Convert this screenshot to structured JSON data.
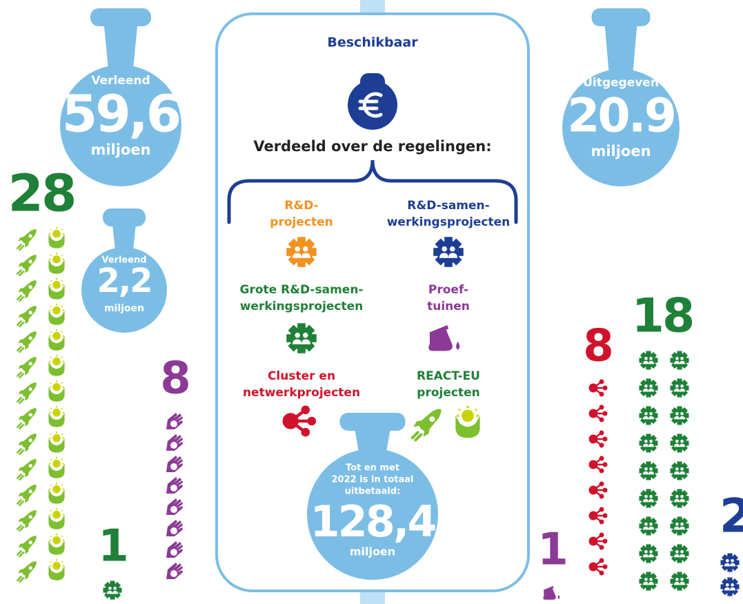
{
  "left_bag": {
    "label": "Verleend",
    "amount": "59,6",
    "unit": "miljoen"
  },
  "small_bag": {
    "label": "Verleend",
    "amount": "2,2",
    "unit": "miljoen"
  },
  "right_bag": {
    "label": "Uitgegeven",
    "amount": "20.9",
    "unit": "miljoen"
  },
  "center": {
    "title": "Beschikbaar",
    "subtitle": "Verdeeld over de regelingen:",
    "schemes": [
      {
        "lines": [
          "R&D-",
          "projecten"
        ]
      },
      {
        "lines": [
          "R&D-samen-",
          "werkingsprojecten"
        ]
      },
      {
        "lines": [
          "Grote R&D-samen-",
          "werkingsprojecten"
        ]
      },
      {
        "lines": [
          "Proef-",
          "tuinen"
        ]
      },
      {
        "lines": [
          "Cluster en",
          "netwerkprojecten"
        ]
      },
      {
        "lines": [
          "REACT-EU",
          "projecten"
        ]
      }
    ],
    "total": {
      "lines": [
        "Tot en met",
        "2022 is in totaal",
        "uitbetaald:"
      ],
      "amount": "128,4",
      "unit": "miljoen"
    }
  },
  "counts": [
    "28",
    "8",
    "1",
    "1",
    "8",
    "18",
    "2"
  ]
}
